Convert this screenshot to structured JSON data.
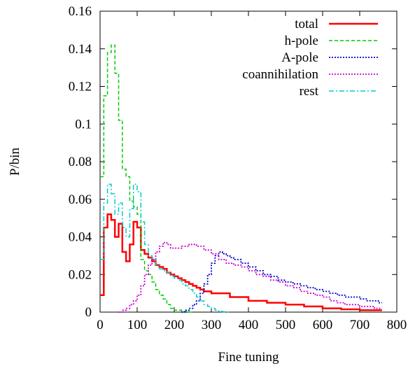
{
  "chart_data": {
    "type": "line",
    "title": "",
    "xlabel": "Fine tuning",
    "ylabel": "P/bin",
    "xlim": [
      0,
      800
    ],
    "ylim": [
      0,
      0.16
    ],
    "xticks": [
      0,
      100,
      200,
      300,
      400,
      500,
      600,
      700,
      800
    ],
    "yticks": [
      0,
      0.02,
      0.04,
      0.06,
      0.08,
      0.1,
      0.12,
      0.14,
      0.16
    ],
    "xtick_labels": [
      "0",
      "100",
      "200",
      "300",
      "400",
      "500",
      "600",
      "700",
      "800"
    ],
    "ytick_labels": [
      "0",
      "0.02",
      "0.04",
      "0.06",
      "0.08",
      "0.1",
      "0.12",
      "0.14",
      "0.16"
    ],
    "grid": false,
    "legend_position": "top-right",
    "series": [
      {
        "name": "total",
        "color": "#ff0000",
        "dash": "solid",
        "step": true,
        "x": [
          0,
          10,
          20,
          30,
          40,
          50,
          60,
          70,
          80,
          90,
          100,
          110,
          120,
          130,
          140,
          150,
          160,
          170,
          180,
          190,
          200,
          210,
          220,
          230,
          240,
          250,
          260,
          270,
          280,
          290,
          300,
          350,
          400,
          450,
          500,
          550,
          600,
          650,
          700,
          750
        ],
        "y": [
          0.009,
          0.045,
          0.052,
          0.049,
          0.04,
          0.047,
          0.032,
          0.027,
          0.036,
          0.048,
          0.045,
          0.033,
          0.031,
          0.029,
          0.027,
          0.025,
          0.024,
          0.023,
          0.021,
          0.02,
          0.019,
          0.018,
          0.017,
          0.016,
          0.015,
          0.014,
          0.013,
          0.012,
          0.011,
          0.011,
          0.01,
          0.008,
          0.006,
          0.005,
          0.004,
          0.003,
          0.002,
          0.0015,
          0.001,
          0.001
        ]
      },
      {
        "name": "h-pole",
        "color": "#00cc00",
        "dash": "dashed",
        "step": true,
        "x": [
          0,
          10,
          20,
          30,
          40,
          50,
          60,
          70,
          80,
          90,
          100,
          110,
          120,
          130,
          140,
          150,
          160,
          170,
          180,
          190,
          200,
          210,
          220,
          230,
          240
        ],
        "y": [
          0.072,
          0.115,
          0.138,
          0.142,
          0.127,
          0.102,
          0.076,
          0.072,
          0.059,
          0.056,
          0.052,
          0.028,
          0.022,
          0.02,
          0.016,
          0.012,
          0.009,
          0.007,
          0.004,
          0.002,
          0.001,
          0.001,
          0.0005,
          0.0003,
          0
        ]
      },
      {
        "name": "A-pole",
        "color": "#0000cc",
        "dash": "dotted",
        "step": true,
        "x": [
          220,
          230,
          240,
          250,
          260,
          270,
          280,
          290,
          300,
          310,
          320,
          330,
          340,
          350,
          360,
          380,
          400,
          420,
          440,
          460,
          480,
          500,
          520,
          540,
          560,
          580,
          600,
          620,
          640,
          660,
          680,
          700,
          720,
          740,
          750
        ],
        "y": [
          0,
          0.001,
          0.002,
          0.004,
          0.006,
          0.01,
          0.015,
          0.02,
          0.026,
          0.03,
          0.032,
          0.031,
          0.03,
          0.029,
          0.028,
          0.026,
          0.024,
          0.022,
          0.02,
          0.019,
          0.017,
          0.016,
          0.015,
          0.014,
          0.013,
          0.012,
          0.011,
          0.01,
          0.009,
          0.008,
          0.008,
          0.007,
          0.006,
          0.006,
          0.005
        ]
      },
      {
        "name": "coannihilation",
        "color": "#cc00cc",
        "dash": "dotted",
        "step": true,
        "x": [
          50,
          60,
          70,
          80,
          90,
          100,
          110,
          120,
          130,
          140,
          150,
          160,
          170,
          180,
          190,
          200,
          220,
          240,
          260,
          280,
          300,
          320,
          340,
          360,
          380,
          400,
          420,
          440,
          460,
          480,
          500,
          520,
          540,
          560,
          580,
          600,
          620,
          640,
          660,
          680,
          700,
          720,
          740,
          750
        ],
        "y": [
          0,
          0.001,
          0.002,
          0.004,
          0.006,
          0.009,
          0.014,
          0.02,
          0.025,
          0.028,
          0.032,
          0.035,
          0.037,
          0.036,
          0.034,
          0.034,
          0.035,
          0.036,
          0.035,
          0.033,
          0.031,
          0.028,
          0.026,
          0.025,
          0.024,
          0.022,
          0.02,
          0.019,
          0.017,
          0.016,
          0.014,
          0.013,
          0.011,
          0.01,
          0.009,
          0.008,
          0.006,
          0.005,
          0.004,
          0.004,
          0.003,
          0.003,
          0.002,
          0.002
        ]
      },
      {
        "name": "rest",
        "color": "#00cccc",
        "dash": "dashdot",
        "step": true,
        "x": [
          0,
          10,
          20,
          30,
          40,
          50,
          60,
          70,
          80,
          90,
          100,
          110,
          120,
          130,
          140,
          150,
          160,
          170,
          180,
          190,
          200,
          210,
          220,
          230,
          240,
          250,
          260,
          270,
          280,
          290,
          300,
          310,
          320,
          330,
          340
        ],
        "y": [
          0.028,
          0.058,
          0.068,
          0.063,
          0.052,
          0.058,
          0.045,
          0.04,
          0.055,
          0.068,
          0.064,
          0.048,
          0.036,
          0.03,
          0.028,
          0.025,
          0.023,
          0.022,
          0.021,
          0.019,
          0.018,
          0.017,
          0.015,
          0.014,
          0.012,
          0.01,
          0.008,
          0.006,
          0.004,
          0.003,
          0.002,
          0.001,
          0.0005,
          0.0002,
          0
        ]
      }
    ]
  }
}
